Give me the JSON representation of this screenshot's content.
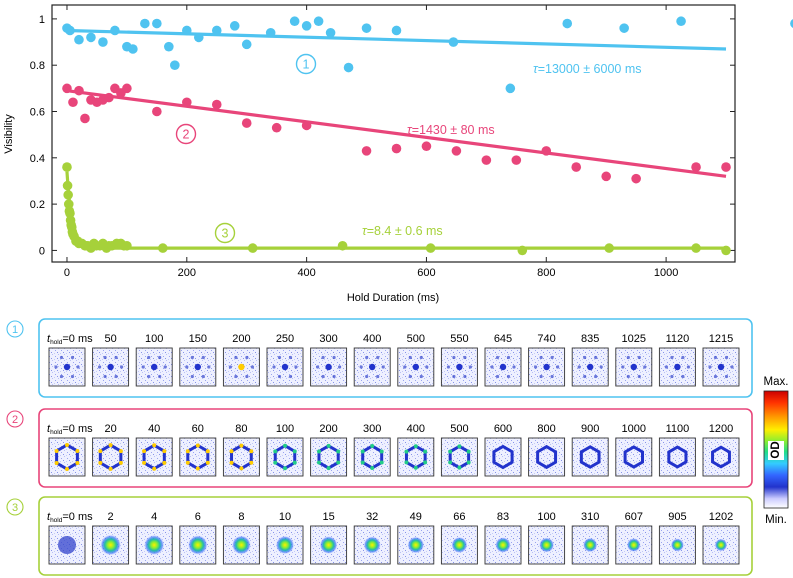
{
  "chart_data": {
    "type": "scatter",
    "xlabel": "Hold Duration (ms)",
    "ylabel": "Visibility",
    "xlim": [
      -25,
      1115
    ],
    "ylim": [
      -0.05,
      1.06
    ],
    "xticks": [
      0,
      200,
      400,
      600,
      800,
      1000
    ],
    "yticks": [
      0,
      0.2,
      0.4,
      0.6,
      0.8,
      1
    ],
    "ytick_labels": [
      "0",
      "0.2",
      "0.4",
      "0.6",
      "0.8",
      "1"
    ],
    "series": [
      {
        "name": "1",
        "label": "1",
        "color": "#4fc3f0",
        "annotation": "=13000 ± 6000 ms",
        "tau_symbol": "τ",
        "x": [
          0,
          5,
          20,
          40,
          60,
          80,
          100,
          110,
          130,
          150,
          170,
          180,
          200,
          220,
          250,
          280,
          300,
          340,
          380,
          400,
          420,
          440,
          470,
          500,
          550,
          645,
          740,
          835,
          930,
          1025,
          1215
        ],
        "y": [
          0.96,
          0.95,
          0.91,
          0.92,
          0.9,
          0.95,
          0.88,
          0.87,
          0.98,
          0.98,
          0.88,
          0.8,
          0.95,
          0.92,
          0.95,
          0.97,
          0.89,
          0.94,
          0.99,
          0.97,
          0.99,
          0.94,
          0.79,
          0.96,
          0.95,
          0.9,
          0.7,
          0.98,
          0.96,
          0.99,
          0.98
        ],
        "fit": {
          "x": [
            0,
            1100
          ],
          "y": [
            0.95,
            0.87
          ]
        }
      },
      {
        "name": "2",
        "label": "2",
        "color": "#e8457a",
        "annotation": "=1430 ± 80 ms",
        "tau_symbol": "τ",
        "x": [
          0,
          10,
          20,
          30,
          40,
          50,
          60,
          70,
          80,
          90,
          100,
          150,
          200,
          250,
          300,
          350,
          400,
          500,
          550,
          600,
          650,
          700,
          750,
          800,
          850,
          900,
          950,
          1050,
          1100
        ],
        "y": [
          0.7,
          0.64,
          0.69,
          0.57,
          0.65,
          0.64,
          0.65,
          0.66,
          0.7,
          0.68,
          0.7,
          0.6,
          0.64,
          0.63,
          0.55,
          0.53,
          0.54,
          0.43,
          0.44,
          0.45,
          0.43,
          0.39,
          0.39,
          0.43,
          0.36,
          0.32,
          0.31,
          0.36,
          0.36
        ],
        "fit": {
          "x": [
            0,
            1100
          ],
          "y": [
            0.69,
            0.32
          ]
        }
      },
      {
        "name": "3",
        "label": "3",
        "color": "#a6d13a",
        "annotation": "=8.4 ± 0.6 ms",
        "tau_symbol": "τ",
        "x": [
          0,
          1,
          2,
          3,
          4,
          5,
          6,
          7,
          8,
          9,
          10,
          12,
          15,
          18,
          20,
          25,
          30,
          32,
          35,
          40,
          45,
          49,
          55,
          60,
          66,
          70,
          75,
          83,
          90,
          95,
          100,
          160,
          310,
          460,
          607,
          760,
          905,
          1050,
          1100
        ],
        "y": [
          0.36,
          0.28,
          0.24,
          0.2,
          0.17,
          0.16,
          0.13,
          0.11,
          0.1,
          0.08,
          0.07,
          0.06,
          0.04,
          0.04,
          0.03,
          0.03,
          0.02,
          0.02,
          0.02,
          0.01,
          0.03,
          0.02,
          0.02,
          0.03,
          0.01,
          0.02,
          0.02,
          0.03,
          0.03,
          0.02,
          0.02,
          0.01,
          0.01,
          0.02,
          0.01,
          0.0,
          0.01,
          0.01,
          0.0
        ],
        "fit": {
          "type": "exp",
          "amplitude": 0.33,
          "tau": 8.4,
          "offset": 0.01
        }
      }
    ]
  },
  "panels": [
    {
      "label": "1",
      "color": "#4fc3f0",
      "t_prefix": "t",
      "t_sub": "hold",
      "times": [
        "=0 ms",
        "50",
        "100",
        "150",
        "200",
        "250",
        "300",
        "400",
        "500",
        "550",
        "645",
        "740",
        "835",
        "1025",
        "1120",
        "1215"
      ],
      "pattern": "faint"
    },
    {
      "label": "2",
      "color": "#e8457a",
      "t_prefix": "t",
      "t_sub": "hold",
      "times": [
        "=0 ms",
        "20",
        "40",
        "60",
        "80",
        "100",
        "200",
        "300",
        "400",
        "500",
        "600",
        "800",
        "900",
        "1000",
        "1100",
        "1200"
      ],
      "pattern": "hexagon"
    },
    {
      "label": "3",
      "color": "#a6d13a",
      "t_prefix": "t",
      "t_sub": "hold",
      "times": [
        "=0 ms",
        "2",
        "4",
        "6",
        "8",
        "10",
        "15",
        "32",
        "49",
        "66",
        "83",
        "100",
        "310",
        "607",
        "905",
        "1202"
      ],
      "pattern": "blob"
    }
  ],
  "colorbar": {
    "max_label": "Max.",
    "min_label": "Min.",
    "title": "OD",
    "colors": [
      "#cc0000",
      "#ff3300",
      "#ff9900",
      "#ffee00",
      "#88ee33",
      "#22dd88",
      "#33ccff",
      "#3366ff",
      "#2233cc",
      "#ccccff",
      "#ffffff"
    ]
  }
}
